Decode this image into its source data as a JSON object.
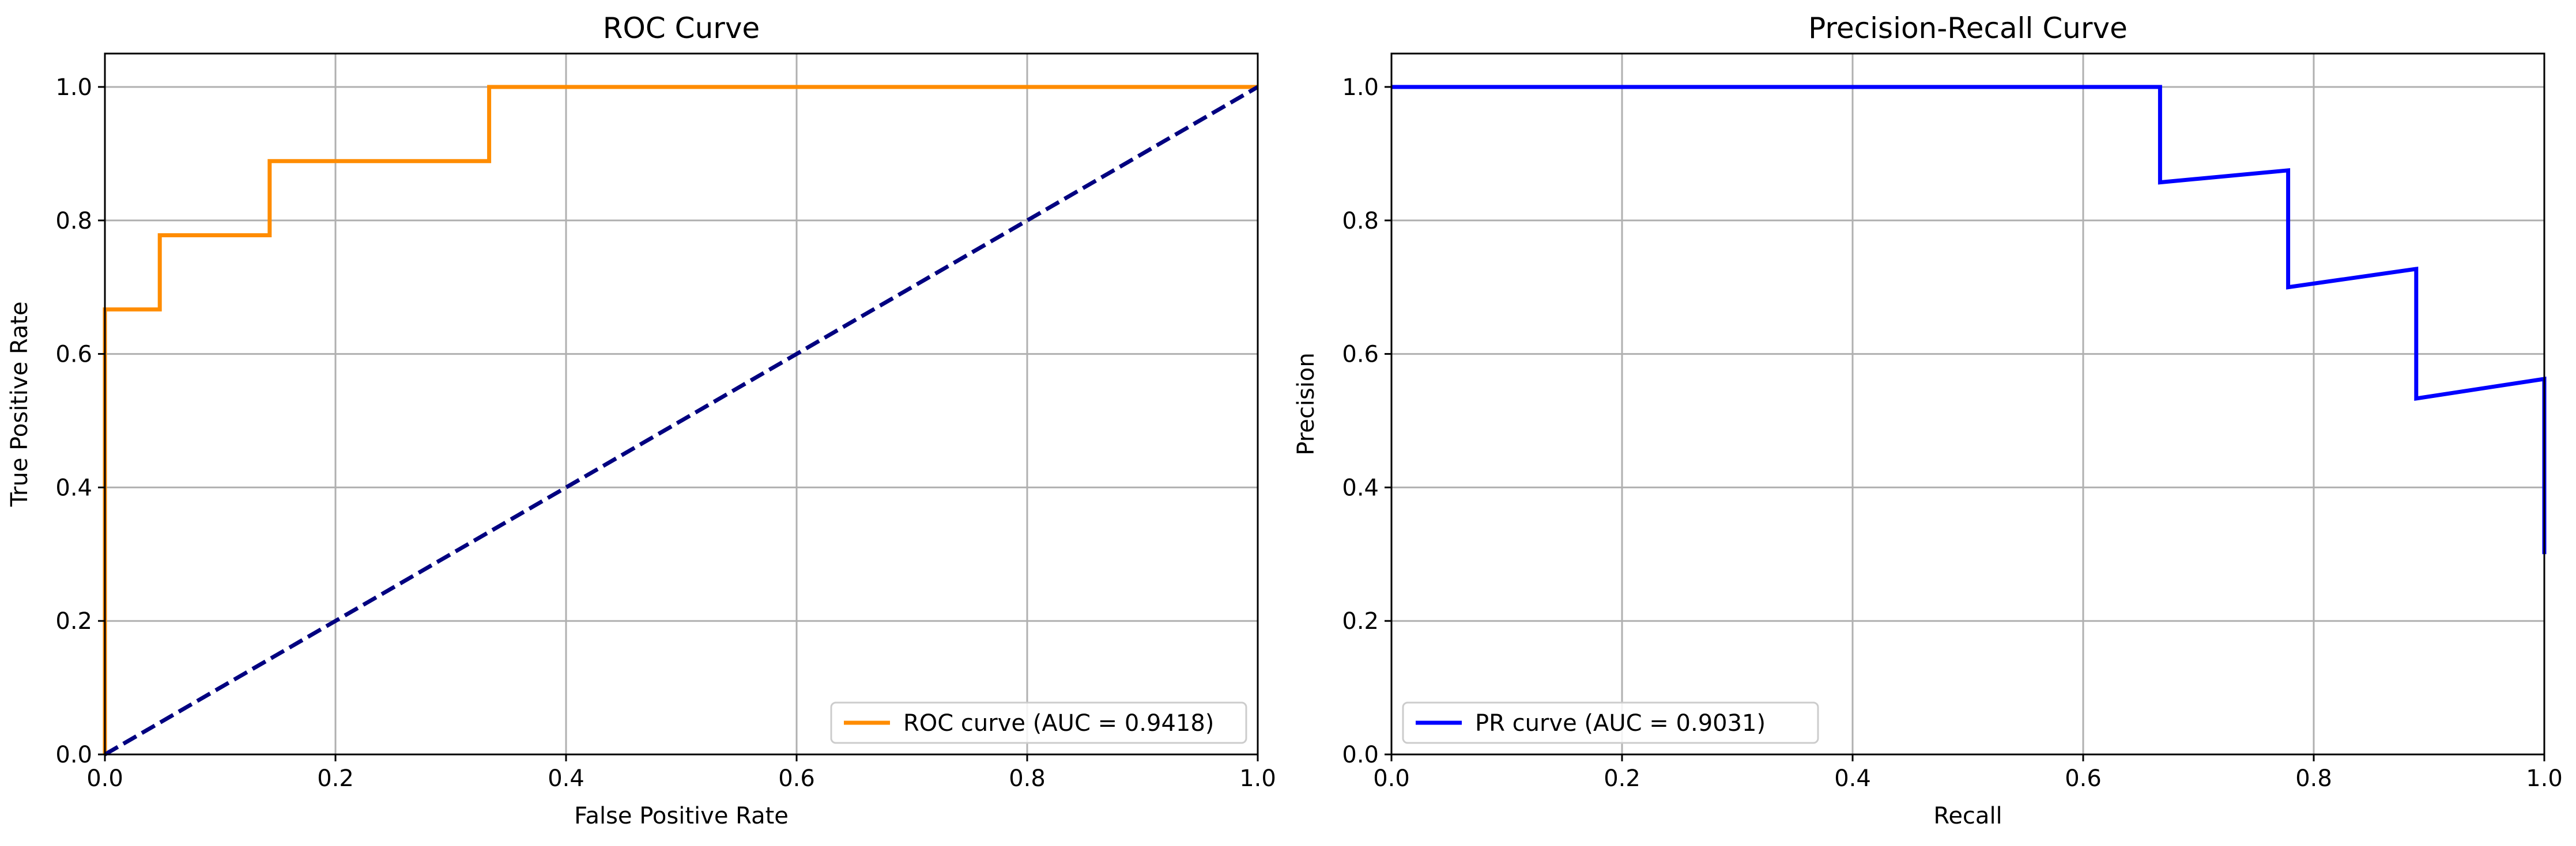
{
  "chart_data": [
    {
      "type": "line",
      "title": "ROC Curve",
      "xlabel": "False Positive Rate",
      "ylabel": "True Positive Rate",
      "xlim": [
        0.0,
        1.0
      ],
      "ylim": [
        0.0,
        1.05
      ],
      "xticks": [
        "0.0",
        "0.2",
        "0.4",
        "0.6",
        "0.8",
        "1.0"
      ],
      "yticks": [
        "0.0",
        "0.2",
        "0.4",
        "0.6",
        "0.8",
        "1.0"
      ],
      "grid": true,
      "legend_position": "lower-right",
      "series": [
        {
          "name": "ROC curve (AUC = 0.9418)",
          "color": "#ff8c00",
          "style": "solid",
          "x": [
            0.0,
            0.0,
            0.0,
            0.0476,
            0.0476,
            0.1429,
            0.1429,
            0.3333,
            0.3333,
            1.0
          ],
          "y": [
            0.0,
            0.6667,
            0.6667,
            0.6667,
            0.7778,
            0.7778,
            0.8889,
            0.8889,
            1.0,
            1.0
          ]
        },
        {
          "color": "#000080",
          "style": "dashed",
          "x": [
            0.0,
            1.0
          ],
          "y": [
            0.0,
            1.0
          ]
        }
      ]
    },
    {
      "type": "line",
      "title": "Precision-Recall Curve",
      "xlabel": "Recall",
      "ylabel": "Precision",
      "xlim": [
        0.0,
        1.0
      ],
      "ylim": [
        0.0,
        1.05
      ],
      "xticks": [
        "0.0",
        "0.2",
        "0.4",
        "0.6",
        "0.8",
        "1.0"
      ],
      "yticks": [
        "0.0",
        "0.2",
        "0.4",
        "0.6",
        "0.8",
        "1.0"
      ],
      "grid": true,
      "legend_position": "lower-left",
      "series": [
        {
          "name": "PR curve (AUC = 0.9031)",
          "color": "#0000ff",
          "style": "solid",
          "x": [
            0.0,
            0.6667,
            0.6667,
            0.7778,
            0.7778,
            0.8889,
            0.8889,
            1.0,
            1.0
          ],
          "y": [
            1.0,
            1.0,
            0.8571,
            0.875,
            0.7,
            0.7273,
            0.5333,
            0.5625,
            0.3
          ]
        }
      ]
    }
  ]
}
